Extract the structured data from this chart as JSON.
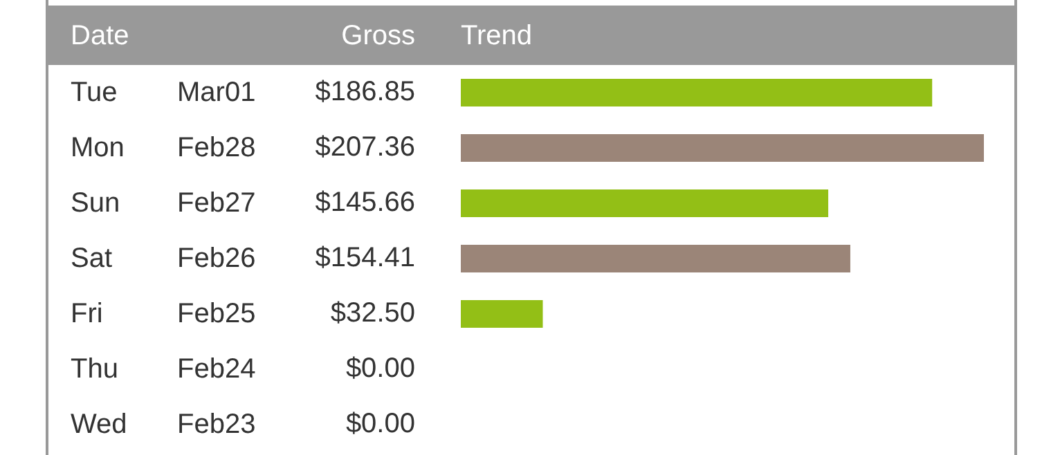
{
  "chart_data": {
    "type": "bar",
    "orientation": "horizontal",
    "annotations": [
      "Date",
      "Gross",
      "Trend"
    ],
    "categories": [
      "Tue Mar01",
      "Mon Feb28",
      "Sun Feb27",
      "Sat Feb26",
      "Fri Feb25",
      "Thu Feb24",
      "Wed Feb23"
    ],
    "values": [
      186.85,
      207.36,
      145.66,
      154.41,
      32.5,
      0,
      0
    ],
    "value_labels": [
      "$186.85",
      "$207.36",
      "$145.66",
      "$154.41",
      "$32.50",
      "$0.00",
      "$0.00"
    ],
    "colors": [
      "#93bf16",
      "#9b8578",
      "#93bf16",
      "#9b8578",
      "#93bf16",
      "#9b8578",
      "#93bf16"
    ],
    "legend": false
  }
}
